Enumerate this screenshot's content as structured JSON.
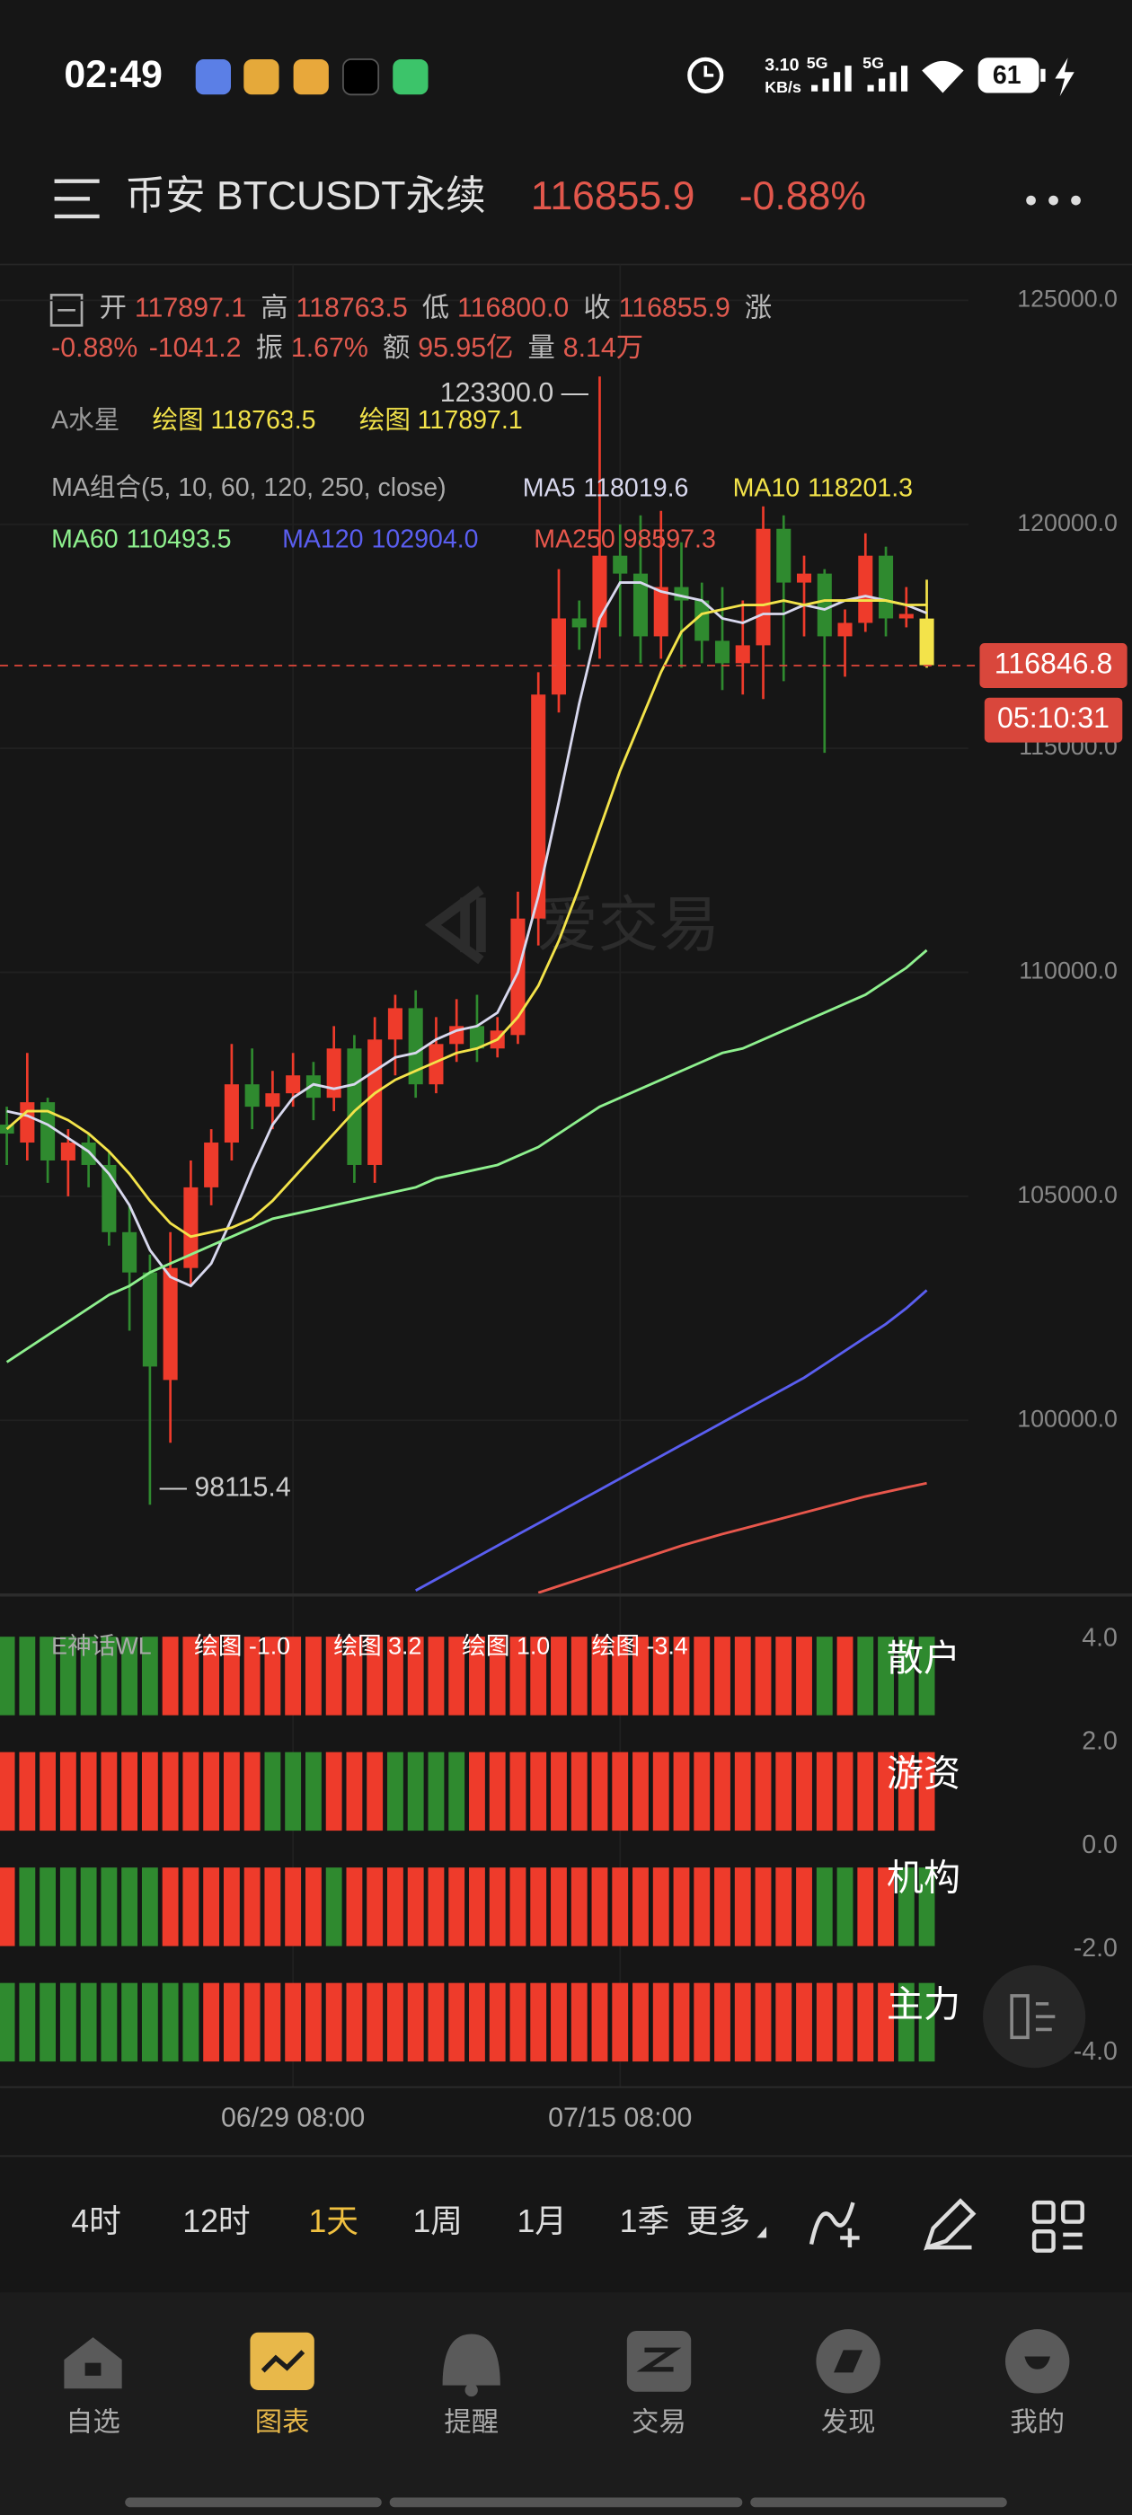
{
  "status_bar": {
    "time": "02:49",
    "speed": "3.10",
    "speed_unit": "KB/s",
    "net1": "5G",
    "net2": "5G",
    "battery": "61"
  },
  "header": {
    "title": "币安 BTCUSDT永续",
    "price": "116855.9",
    "change": "-0.88%"
  },
  "info": {
    "line1": [
      [
        "开",
        "117897.1"
      ],
      [
        "高",
        "118763.5"
      ],
      [
        "低",
        "116800.0"
      ],
      [
        "收",
        "116855.9"
      ],
      [
        "涨",
        null
      ]
    ],
    "line2": [
      [
        null,
        "-0.88%"
      ],
      [
        null,
        "-1041.2"
      ],
      [
        "振",
        "1.67%"
      ],
      [
        "额",
        "95.95亿"
      ],
      [
        "量",
        "8.14万"
      ]
    ],
    "indicator_name": "A水星",
    "draw1": "绘图 118763.5",
    "draw2": "绘图 117897.1",
    "ma_combo": "MA组合(5, 10, 60, 120, 250, close)"
  },
  "chart_data": {
    "type": "candlestick",
    "categories": [
      null,
      null,
      null,
      null,
      null,
      null,
      null,
      null,
      null,
      null,
      null,
      null,
      null,
      null,
      "06/29 08:00",
      null,
      null,
      null,
      null,
      null,
      null,
      null,
      null,
      null,
      null,
      null,
      null,
      null,
      null,
      null,
      "07/15 08:00",
      null,
      null,
      null,
      null,
      null,
      null,
      null,
      null,
      null,
      null,
      null,
      null,
      null,
      null,
      null
    ],
    "open": [
      106600,
      106200,
      107100,
      105800,
      106200,
      105700,
      104200,
      103300,
      100900,
      103400,
      105200,
      106200,
      107500,
      107000,
      107300,
      107700,
      107200,
      108300,
      105700,
      108500,
      109200,
      107500,
      108400,
      108800,
      108300,
      108600,
      111200,
      116200,
      117900,
      117700,
      119300,
      118900,
      117500,
      118600,
      118300,
      117400,
      116900,
      117300,
      119900,
      118700,
      118900,
      117500,
      117800,
      119300,
      117900,
      117897.1
    ],
    "high": [
      107000,
      108200,
      107200,
      106500,
      106400,
      106000,
      104800,
      103700,
      104200,
      105800,
      106500,
      108400,
      108300,
      107800,
      108200,
      108000,
      108800,
      108600,
      109000,
      109500,
      109600,
      109000,
      109400,
      109500,
      109000,
      111800,
      116700,
      119000,
      118300,
      123300,
      120000,
      120200,
      120300,
      119600,
      118700,
      118600,
      118300,
      120400,
      120200,
      119300,
      119000,
      118100,
      119800,
      119500,
      118600,
      118763.5
    ],
    "low": [
      105700,
      105800,
      105300,
      105000,
      105200,
      103900,
      102000,
      98115.4,
      99500,
      103000,
      104800,
      105800,
      106500,
      106500,
      107000,
      106700,
      106900,
      105300,
      105300,
      107700,
      107200,
      107300,
      108000,
      108000,
      108100,
      108400,
      110600,
      115800,
      117200,
      117000,
      117500,
      116900,
      117000,
      116800,
      116900,
      116300,
      116200,
      116100,
      116500,
      117500,
      114900,
      116600,
      117600,
      117500,
      117700,
      116800
    ],
    "close": [
      106400,
      107100,
      105800,
      106200,
      105700,
      104200,
      103300,
      101200,
      103400,
      105200,
      106200,
      107500,
      107000,
      107300,
      107700,
      107200,
      108300,
      105700,
      108500,
      109200,
      107500,
      108400,
      108800,
      108300,
      108700,
      111200,
      116200,
      117900,
      117700,
      119300,
      118900,
      117500,
      118600,
      118300,
      117400,
      116900,
      117300,
      119900,
      118700,
      118900,
      117500,
      117800,
      119300,
      117900,
      118000,
      116855.9
    ],
    "up_color": "#ee3b2b",
    "down_color": "#2f8a2f",
    "live_color": "#f3e34a",
    "lines": [
      {
        "name": "MA5",
        "legend_value": "118019.6",
        "color": "#d8d8ee",
        "values": [
          106900,
          106800,
          106600,
          106300,
          106000,
          105500,
          104800,
          103800,
          103200,
          103000,
          103500,
          104500,
          105600,
          106600,
          107200,
          107500,
          107400,
          107500,
          107800,
          108100,
          108200,
          108500,
          108700,
          108800,
          109100,
          110000,
          111700,
          113800,
          116000,
          117900,
          118700,
          118700,
          118500,
          118400,
          118300,
          117900,
          117800,
          118000,
          118000,
          118200,
          118100,
          118300,
          118400,
          118300,
          118200,
          118019.6
        ]
      },
      {
        "name": "MA10",
        "legend_value": "118201.3",
        "color": "#f3e34a",
        "values": [
          106500,
          106900,
          106900,
          106700,
          106400,
          106000,
          105500,
          104900,
          104400,
          104100,
          104200,
          104300,
          104500,
          104900,
          105400,
          105900,
          106400,
          106900,
          107300,
          107600,
          107800,
          108000,
          108200,
          108300,
          108500,
          109000,
          109700,
          110700,
          111900,
          113200,
          114500,
          115600,
          116700,
          117600,
          118000,
          118100,
          118200,
          118200,
          118300,
          118200,
          118300,
          118300,
          118300,
          118300,
          118200,
          118201.3
        ]
      },
      {
        "name": "MA60",
        "legend_value": "110493.5",
        "color": "#8ef08e",
        "values": [
          101300,
          101600,
          101900,
          102200,
          102500,
          102800,
          103000,
          103300,
          103500,
          103700,
          103900,
          104100,
          104300,
          104500,
          104600,
          104700,
          104800,
          104900,
          105000,
          105100,
          105200,
          105400,
          105500,
          105600,
          105700,
          105900,
          106100,
          106400,
          106700,
          107000,
          107200,
          107400,
          107600,
          107800,
          108000,
          108200,
          108300,
          108500,
          108700,
          108900,
          109100,
          109300,
          109500,
          109800,
          110100,
          110493.5
        ]
      },
      {
        "name": "MA120",
        "legend_value": "102904.0",
        "color": "#5a5ef0",
        "values": [
          null,
          null,
          null,
          null,
          null,
          null,
          null,
          null,
          null,
          null,
          null,
          null,
          null,
          null,
          null,
          null,
          null,
          null,
          null,
          null,
          96200,
          96450,
          96700,
          96950,
          97200,
          97450,
          97700,
          97950,
          98200,
          98450,
          98700,
          98950,
          99200,
          99450,
          99700,
          99950,
          100200,
          100450,
          100700,
          100950,
          101250,
          101550,
          101850,
          102150,
          102500,
          102904
        ]
      },
      {
        "name": "MA250",
        "legend_value": "98597.3",
        "color": "#e8574c",
        "values": [
          null,
          null,
          null,
          null,
          null,
          null,
          null,
          null,
          null,
          null,
          null,
          null,
          null,
          null,
          null,
          null,
          null,
          null,
          null,
          null,
          null,
          null,
          null,
          null,
          null,
          null,
          96150,
          96300,
          96450,
          96600,
          96750,
          96900,
          97050,
          97200,
          97330,
          97460,
          97580,
          97700,
          97820,
          97940,
          98060,
          98180,
          98300,
          98400,
          98500,
          98597.3
        ]
      }
    ],
    "ylim": [
      96100,
      125800
    ],
    "yticks": [
      {
        "value": 125000,
        "label": "125000.0"
      },
      {
        "value": 120000,
        "label": "120000.0"
      },
      {
        "value": 115000,
        "label": "115000.0"
      },
      {
        "value": 110000,
        "label": "110000.0"
      },
      {
        "value": 105000,
        "label": "105000.0"
      },
      {
        "value": 100000,
        "label": "100000.0"
      }
    ],
    "grid": true,
    "high_annotation": "123300.0 —",
    "low_annotation": "— 98115.4",
    "current_price": 116846.8,
    "countdown": "05:10:31",
    "watermark": "爱交易"
  },
  "indicator": {
    "title": "E神话WL",
    "readouts": [
      "绘图 -1.0",
      "绘图 3.2",
      "绘图 1.0",
      "绘图 -3.4"
    ],
    "ylim": [
      -4.6,
      4.7
    ],
    "yticks": [
      {
        "value": 4,
        "label": "4.0"
      },
      {
        "value": 2,
        "label": "2.0"
      },
      {
        "value": 0,
        "label": "0.0"
      },
      {
        "value": -2,
        "label": "-2.0"
      },
      {
        "value": -4,
        "label": "-4.0"
      }
    ],
    "rows": [
      {
        "name": "散户",
        "colors": [
          "#2f8a2f",
          "#2f8a2f",
          "#2f8a2f",
          "#2f8a2f",
          "#2f8a2f",
          "#2f8a2f",
          "#2f8a2f",
          "#2f8a2f",
          "#ee3b2b",
          "#ee3b2b",
          "#ee3b2b",
          "#ee3b2b",
          "#ee3b2b",
          "#ee3b2b",
          "#ee3b2b",
          "#ee3b2b",
          "#ee3b2b",
          "#ee3b2b",
          "#ee3b2b",
          "#ee3b2b",
          "#ee3b2b",
          "#ee3b2b",
          "#ee3b2b",
          "#ee3b2b",
          "#ee3b2b",
          "#ee3b2b",
          "#ee3b2b",
          "#ee3b2b",
          "#ee3b2b",
          "#ee3b2b",
          "#ee3b2b",
          "#ee3b2b",
          "#ee3b2b",
          "#ee3b2b",
          "#ee3b2b",
          "#ee3b2b",
          "#ee3b2b",
          "#ee3b2b",
          "#ee3b2b",
          "#ee3b2b",
          "#2f8a2f",
          "#ee3b2b",
          "#2f8a2f",
          "#2f8a2f",
          "#2f8a2f",
          "#2f8a2f"
        ]
      },
      {
        "name": "游资",
        "colors": [
          "#ee3b2b",
          "#ee3b2b",
          "#ee3b2b",
          "#ee3b2b",
          "#ee3b2b",
          "#ee3b2b",
          "#ee3b2b",
          "#ee3b2b",
          "#ee3b2b",
          "#ee3b2b",
          "#ee3b2b",
          "#ee3b2b",
          "#ee3b2b",
          "#2f8a2f",
          "#2f8a2f",
          "#2f8a2f",
          "#ee3b2b",
          "#ee3b2b",
          "#ee3b2b",
          "#2f8a2f",
          "#2f8a2f",
          "#2f8a2f",
          "#2f8a2f",
          "#ee3b2b",
          "#ee3b2b",
          "#ee3b2b",
          "#ee3b2b",
          "#ee3b2b",
          "#ee3b2b",
          "#ee3b2b",
          "#ee3b2b",
          "#ee3b2b",
          "#ee3b2b",
          "#ee3b2b",
          "#ee3b2b",
          "#ee3b2b",
          "#ee3b2b",
          "#ee3b2b",
          "#ee3b2b",
          "#ee3b2b",
          "#ee3b2b",
          "#ee3b2b",
          "#ee3b2b",
          "#ee3b2b",
          "#ee3b2b",
          "#ee3b2b"
        ]
      },
      {
        "name": "机构",
        "colors": [
          "#ee3b2b",
          "#2f8a2f",
          "#2f8a2f",
          "#2f8a2f",
          "#2f8a2f",
          "#2f8a2f",
          "#2f8a2f",
          "#2f8a2f",
          "#ee3b2b",
          "#ee3b2b",
          "#ee3b2b",
          "#ee3b2b",
          "#ee3b2b",
          "#ee3b2b",
          "#ee3b2b",
          "#ee3b2b",
          "#2f8a2f",
          "#ee3b2b",
          "#ee3b2b",
          "#ee3b2b",
          "#ee3b2b",
          "#ee3b2b",
          "#ee3b2b",
          "#ee3b2b",
          "#ee3b2b",
          "#ee3b2b",
          "#ee3b2b",
          "#ee3b2b",
          "#ee3b2b",
          "#ee3b2b",
          "#ee3b2b",
          "#ee3b2b",
          "#ee3b2b",
          "#ee3b2b",
          "#ee3b2b",
          "#ee3b2b",
          "#ee3b2b",
          "#ee3b2b",
          "#ee3b2b",
          "#ee3b2b",
          "#2f8a2f",
          "#2f8a2f",
          "#ee3b2b",
          "#ee3b2b",
          "#2f8a2f",
          "#2f8a2f"
        ]
      },
      {
        "name": "主力",
        "colors": [
          "#2f8a2f",
          "#2f8a2f",
          "#2f8a2f",
          "#2f8a2f",
          "#2f8a2f",
          "#2f8a2f",
          "#2f8a2f",
          "#2f8a2f",
          "#2f8a2f",
          "#2f8a2f",
          "#ee3b2b",
          "#ee3b2b",
          "#ee3b2b",
          "#ee3b2b",
          "#ee3b2b",
          "#ee3b2b",
          "#ee3b2b",
          "#ee3b2b",
          "#ee3b2b",
          "#ee3b2b",
          "#ee3b2b",
          "#ee3b2b",
          "#ee3b2b",
          "#ee3b2b",
          "#ee3b2b",
          "#ee3b2b",
          "#ee3b2b",
          "#ee3b2b",
          "#ee3b2b",
          "#ee3b2b",
          "#ee3b2b",
          "#ee3b2b",
          "#ee3b2b",
          "#ee3b2b",
          "#ee3b2b",
          "#ee3b2b",
          "#ee3b2b",
          "#ee3b2b",
          "#ee3b2b",
          "#ee3b2b",
          "#ee3b2b",
          "#ee3b2b",
          "#ee3b2b",
          "#ee3b2b",
          "#2f8a2f",
          "#2f8a2f"
        ]
      }
    ]
  },
  "timeframes": [
    "4时",
    "12时",
    "1天",
    "1周",
    "1月",
    "1季",
    "更多"
  ],
  "nav": [
    "自选",
    "图表",
    "提醒",
    "交易",
    "发现",
    "我的"
  ]
}
